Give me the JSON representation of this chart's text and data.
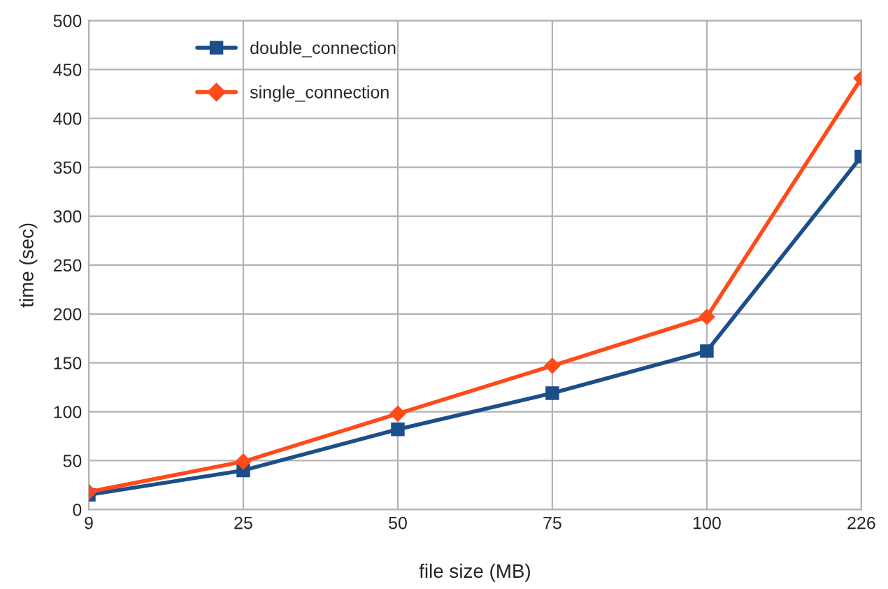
{
  "chart_data": {
    "type": "line",
    "xlabel": "file size (MB)",
    "ylabel": "time (sec)",
    "categories": [
      "9",
      "25",
      "50",
      "75",
      "100",
      "226"
    ],
    "series": [
      {
        "name": "double_connection",
        "color": "#1c4f8a",
        "marker": "square",
        "values": [
          15,
          40,
          82,
          119,
          162,
          361
        ]
      },
      {
        "name": "single_connection",
        "color": "#ff4a1a",
        "marker": "diamond",
        "values": [
          18,
          49,
          98,
          147,
          197,
          441
        ]
      }
    ],
    "ylim": [
      0,
      500
    ],
    "yticks": [
      0,
      50,
      100,
      150,
      200,
      250,
      300,
      350,
      400,
      450,
      500
    ],
    "grid": true,
    "legend": "top left",
    "line_style": "solid"
  }
}
